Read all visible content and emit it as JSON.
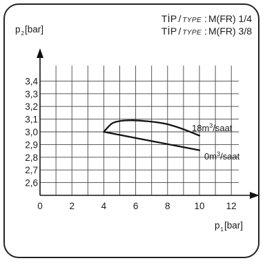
{
  "header": {
    "lines": [
      {
        "tip": "TİP",
        "sep": "/",
        "type": "TYPE",
        "colon": ":",
        "value": "M(FR) 1/4"
      },
      {
        "tip": "TİP",
        "sep": "/",
        "type": "TYPE",
        "colon": ":",
        "value": "M(FR) 3/8"
      }
    ]
  },
  "chart_data": {
    "type": "line",
    "ylabel": {
      "main": "p",
      "sub": "2",
      "unit": "[bar]"
    },
    "xlabel": {
      "main": "p",
      "sub": "1",
      "unit": "[bar]"
    },
    "xlim": [
      0,
      13
    ],
    "ylim": [
      2.5,
      3.55
    ],
    "x_ticks": [
      "0",
      "2",
      "4",
      "6",
      "8",
      "10",
      "12"
    ],
    "y_ticks": [
      "2,6",
      "2,7",
      "2,8",
      "2,9",
      "3,0",
      "3,1",
      "3,2",
      "3,3",
      "3,4"
    ],
    "grid": true,
    "series": [
      {
        "label_main": "18m",
        "label_sup": "3",
        "label_rest": "/saat",
        "x": [
          4,
          4.5,
          5,
          5.5,
          6,
          7,
          8,
          9,
          10
        ],
        "y": [
          3.0,
          3.065,
          3.085,
          3.09,
          3.09,
          3.08,
          3.06,
          3.02,
          2.97
        ]
      },
      {
        "label_main": "0m",
        "label_sup": "3",
        "label_rest": "/saat",
        "x": [
          4,
          10
        ],
        "y": [
          3.0,
          2.855
        ]
      }
    ]
  }
}
